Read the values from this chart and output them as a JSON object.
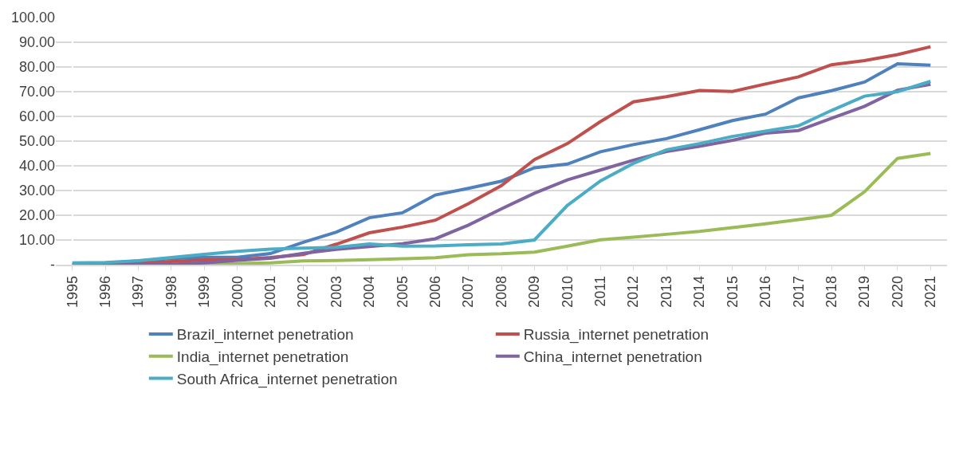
{
  "chart_data": {
    "type": "line",
    "categories": [
      "1995",
      "1996",
      "1997",
      "1998",
      "1999",
      "2000",
      "2001",
      "2002",
      "2003",
      "2004",
      "2005",
      "2006",
      "2007",
      "2008",
      "2009",
      "2010",
      "2011",
      "2012",
      "2013",
      "2014",
      "2015",
      "2016",
      "2017",
      "2018",
      "2019",
      "2020",
      "2021"
    ],
    "series": [
      {
        "name": "Brazil_internet penetration",
        "color": "#4f81bd",
        "values": [
          0.1,
          0.5,
          1.5,
          2.5,
          3,
          3,
          4.5,
          9.1,
          13.2,
          19,
          21,
          28.2,
          30.9,
          33.8,
          39.2,
          40.7,
          45.7,
          48.6,
          51,
          54.6,
          58.3,
          60.9,
          67.5,
          70.4,
          73.9,
          81.3,
          80.7
        ]
      },
      {
        "name": "Russia_internet penetration",
        "color": "#c0504d",
        "values": [
          null,
          0.3,
          0.5,
          1.3,
          1.9,
          2,
          2.9,
          4.1,
          8.3,
          12.9,
          15.2,
          18,
          24.7,
          32,
          42.5,
          49,
          57.9,
          65.9,
          68,
          70.5,
          70.1,
          73.1,
          76,
          80.9,
          82.6,
          85,
          88.2
        ]
      },
      {
        "name": "India_internet penetration",
        "color": "#9bbb59",
        "values": [
          null,
          null,
          null,
          0.1,
          0.3,
          0.5,
          0.7,
          1.5,
          1.7,
          2,
          2.4,
          2.8,
          4,
          4.4,
          5.1,
          7.5,
          10.1,
          11.1,
          12.3,
          13.5,
          15,
          16.5,
          18.2,
          20,
          29.5,
          43,
          45
        ]
      },
      {
        "name": "China_internet penetration",
        "color": "#8064a2",
        "values": [
          0,
          0,
          0.2,
          0.2,
          0.7,
          1.8,
          2.6,
          4.6,
          6.2,
          7.3,
          8.5,
          10.5,
          16,
          22.6,
          28.9,
          34.3,
          38.3,
          42.3,
          45.8,
          47.9,
          50.3,
          53.2,
          54.3,
          59.2,
          64.1,
          70.6,
          73
        ]
      },
      {
        "name": "South Africa_internet penetration",
        "color": "#4bacc6",
        "values": [
          0.7,
          0.9,
          1.6,
          2.9,
          4.2,
          5.4,
          6.3,
          6.7,
          7,
          8.4,
          7.5,
          7.6,
          8.1,
          8.4,
          10,
          24,
          33.9,
          41,
          46.5,
          49,
          51.9,
          54,
          56.2,
          62.4,
          68.2,
          70,
          74.2
        ]
      }
    ],
    "ylim": [
      0,
      100
    ],
    "yticks": [
      {
        "value": 0,
        "label": "-"
      },
      {
        "value": 10,
        "label": "10.00"
      },
      {
        "value": 20,
        "label": "20.00"
      },
      {
        "value": 30,
        "label": "30.00"
      },
      {
        "value": 40,
        "label": "40.00"
      },
      {
        "value": 50,
        "label": "50.00"
      },
      {
        "value": 60,
        "label": "60.00"
      },
      {
        "value": 70,
        "label": "70.00"
      },
      {
        "value": 80,
        "label": "80.00"
      },
      {
        "value": 90,
        "label": "90.00"
      },
      {
        "value": 100,
        "label": "100.00"
      }
    ],
    "grid": "y",
    "legend": "bottom",
    "marker": "none",
    "line_style": "solid"
  }
}
